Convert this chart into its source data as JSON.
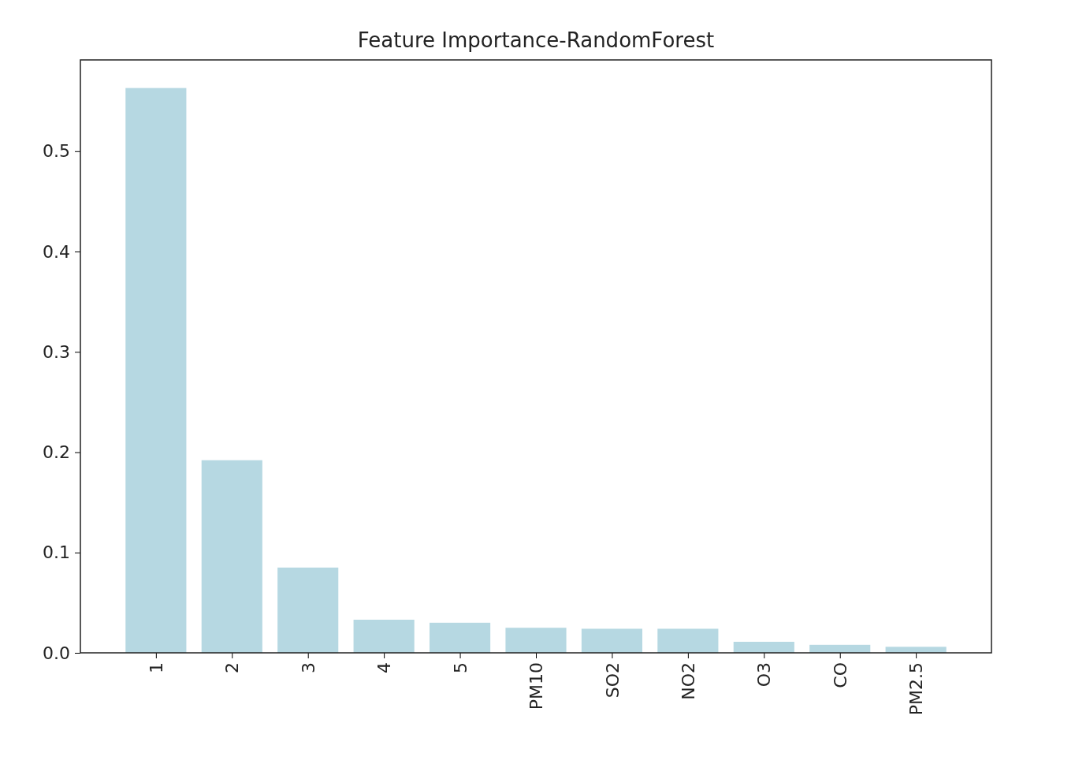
{
  "chart_data": {
    "type": "bar",
    "title": "Feature Importance-RandomForest",
    "categories": [
      "1",
      "2",
      "3",
      "4",
      "5",
      "PM10",
      "SO2",
      "NO2",
      "O3",
      "CO",
      "PM2.5"
    ],
    "values": [
      0.563,
      0.192,
      0.085,
      0.033,
      0.03,
      0.025,
      0.024,
      0.024,
      0.011,
      0.008,
      0.006
    ],
    "color": "#b6d8e2",
    "ylim": [
      0,
      0.591
    ],
    "yticks": [
      {
        "value": 0,
        "label": "0.0"
      },
      0.1,
      0.2,
      0.3,
      0.4,
      0.5
    ],
    "grid": false
  }
}
